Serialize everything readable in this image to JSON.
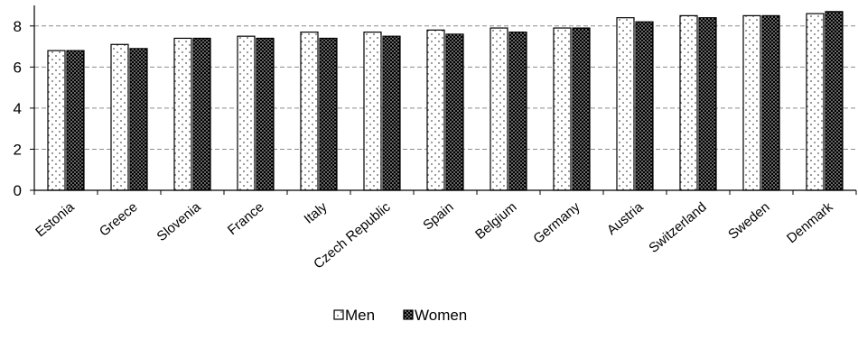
{
  "chart_data": {
    "type": "bar",
    "categories": [
      "Estonia",
      "Greece",
      "Slovenia",
      "France",
      "Italy",
      "Czech Republic",
      "Spain",
      "Belgium",
      "Germany",
      "Austria",
      "Switzerland",
      "Sweden",
      "Denmark"
    ],
    "series": [
      {
        "name": "Men",
        "values": [
          6.8,
          7.1,
          7.4,
          7.5,
          7.7,
          7.7,
          7.8,
          7.9,
          7.9,
          8.4,
          8.5,
          8.5,
          8.6
        ],
        "color": "#ffffff",
        "pattern": "sparse-dots"
      },
      {
        "name": "Women",
        "values": [
          6.8,
          6.9,
          7.4,
          7.4,
          7.4,
          7.5,
          7.6,
          7.7,
          7.9,
          8.2,
          8.4,
          8.5,
          8.7
        ],
        "color": "#000000",
        "pattern": "dense-dots"
      }
    ],
    "yticks": [
      "0",
      "2",
      "4",
      "6",
      "8"
    ],
    "ylim": [
      0,
      9
    ],
    "grid": "horizontal-dashed",
    "legend": "bottom-center"
  }
}
